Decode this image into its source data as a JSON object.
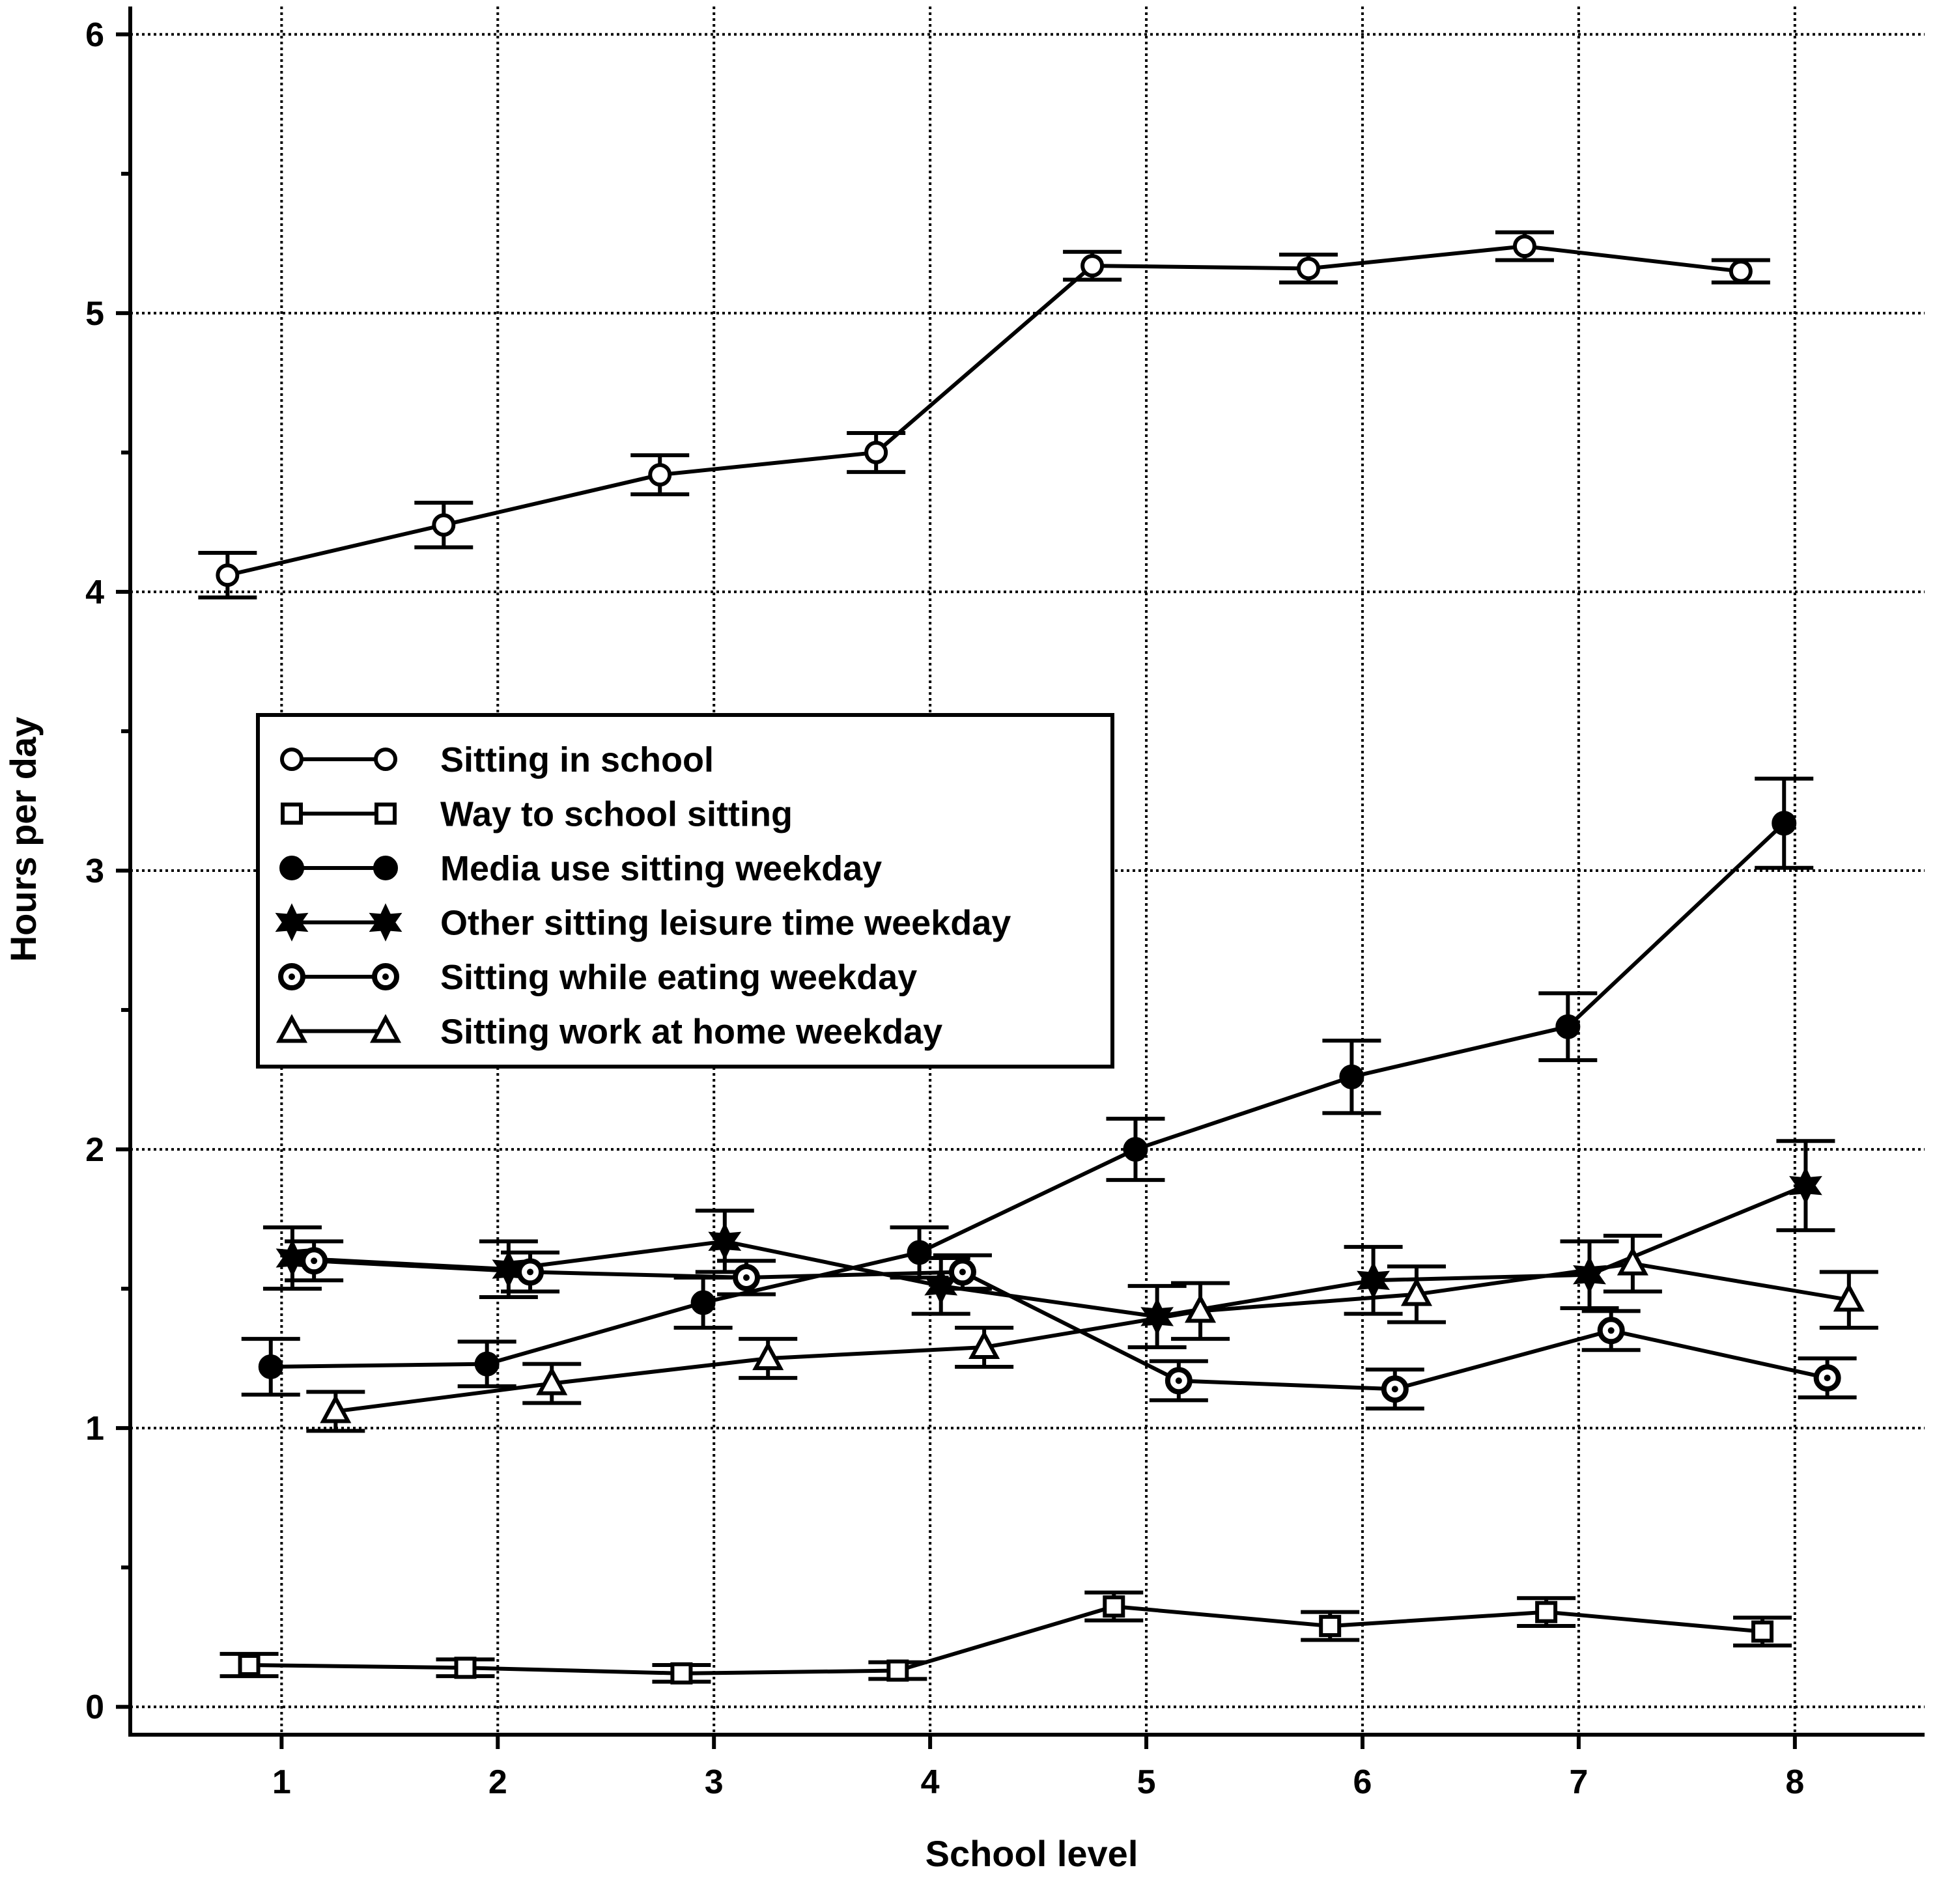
{
  "chart_data": {
    "type": "line",
    "title": "",
    "xlabel": "School level",
    "ylabel": "Hours per day",
    "xlim": [
      0.3,
      8.6
    ],
    "ylim": [
      -0.1,
      6.1
    ],
    "xticks": [
      "1",
      "2",
      "3",
      "4",
      "5",
      "6",
      "7",
      "8"
    ],
    "xtick_values": [
      1,
      2,
      3,
      4,
      5,
      6,
      7,
      8
    ],
    "yticks": [
      "0",
      "1",
      "2",
      "3",
      "4",
      "5",
      "6"
    ],
    "ytick_values": [
      0,
      1,
      2,
      3,
      4,
      5,
      6
    ],
    "ytick_minor_values": [
      0.5,
      1.5,
      2.5,
      3.5,
      4.5,
      5.5
    ],
    "grid": true,
    "legend_position": "middle-left",
    "error_bars": true,
    "series": [
      {
        "name": "Sitting in school",
        "marker": "open-circle",
        "x": [
          0.75,
          1.75,
          2.75,
          3.75,
          4.75,
          5.75,
          6.75,
          7.75
        ],
        "y": [
          4.06,
          4.24,
          4.42,
          4.5,
          5.17,
          5.16,
          5.24,
          5.15
        ],
        "err": [
          0.08,
          0.08,
          0.07,
          0.07,
          0.05,
          0.05,
          0.05,
          0.04
        ]
      },
      {
        "name": "Way to school sitting",
        "marker": "open-square",
        "x": [
          0.85,
          1.85,
          2.85,
          3.85,
          4.85,
          5.85,
          6.85,
          7.85
        ],
        "y": [
          0.15,
          0.14,
          0.12,
          0.13,
          0.36,
          0.29,
          0.34,
          0.27
        ],
        "err": [
          0.04,
          0.03,
          0.03,
          0.03,
          0.05,
          0.05,
          0.05,
          0.05
        ]
      },
      {
        "name": "Media use sitting weekday",
        "marker": "filled-circle",
        "x": [
          0.95,
          1.95,
          2.95,
          3.95,
          4.95,
          5.95,
          6.95,
          7.95
        ],
        "y": [
          1.22,
          1.23,
          1.45,
          1.63,
          2.0,
          2.26,
          2.44,
          3.17
        ],
        "err": [
          0.1,
          0.08,
          0.09,
          0.09,
          0.11,
          0.13,
          0.12,
          0.16
        ]
      },
      {
        "name": "Other sitting leisure time weekday",
        "marker": "filled-star",
        "x": [
          1.05,
          2.05,
          3.05,
          4.05,
          5.05,
          6.05,
          7.05,
          8.05
        ],
        "y": [
          1.61,
          1.57,
          1.67,
          1.51,
          1.4,
          1.53,
          1.55,
          1.87
        ],
        "err": [
          0.11,
          0.1,
          0.11,
          0.1,
          0.11,
          0.12,
          0.12,
          0.16
        ]
      },
      {
        "name": "Sitting while eating weekday",
        "marker": "dot-circle",
        "x": [
          1.15,
          2.15,
          3.15,
          4.15,
          5.15,
          6.15,
          7.15,
          8.15
        ],
        "y": [
          1.6,
          1.56,
          1.54,
          1.56,
          1.17,
          1.14,
          1.35,
          1.18
        ],
        "err": [
          0.07,
          0.07,
          0.06,
          0.06,
          0.07,
          0.07,
          0.07,
          0.07
        ]
      },
      {
        "name": "Sitting work at home weekday",
        "marker": "open-triangle",
        "x": [
          1.25,
          2.25,
          3.25,
          4.25,
          5.25,
          6.25,
          7.25,
          8.25
        ],
        "y": [
          1.06,
          1.16,
          1.25,
          1.29,
          1.42,
          1.48,
          1.59,
          1.46
        ],
        "err": [
          0.07,
          0.07,
          0.07,
          0.07,
          0.1,
          0.1,
          0.1,
          0.1
        ]
      }
    ]
  }
}
